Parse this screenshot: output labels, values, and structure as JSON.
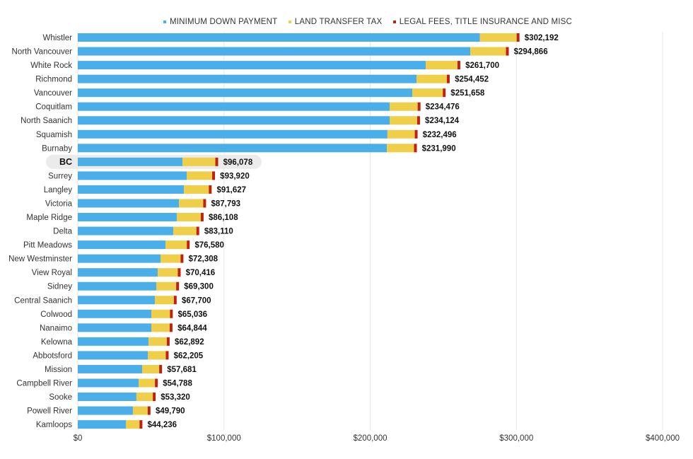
{
  "chart_data": {
    "type": "bar",
    "orientation": "horizontal",
    "stacked": true,
    "xlim": [
      0,
      400000
    ],
    "x_ticks": [
      "$0",
      "$100,000",
      "$200,000",
      "$300,000",
      "$400,000"
    ],
    "x_tick_values": [
      0,
      100000,
      200000,
      300000,
      400000
    ],
    "grid": "vertical",
    "legend_position": "top",
    "highlight_category": "BC",
    "categories": [
      "Whistler",
      "North Vancouver",
      "White Rock",
      "Richmond",
      "Vancouver",
      "Coquitlam",
      "North Saanich",
      "Squamish",
      "Burnaby",
      "BC",
      "Surrey",
      "Langley",
      "Victoria",
      "Maple Ridge",
      "Delta",
      "Pitt Meadows",
      "New Westminster",
      "View Royal",
      "Sidney",
      "Central Saanich",
      "Colwood",
      "Nanaimo",
      "Kelowna",
      "Abbotsford",
      "Mission",
      "Campbell River",
      "Sooke",
      "Powell River",
      "Kamloops"
    ],
    "totals": [
      302192,
      294866,
      261700,
      254452,
      251658,
      234476,
      234124,
      232496,
      231990,
      96078,
      93920,
      91627,
      87793,
      86108,
      83110,
      76580,
      72308,
      70416,
      69300,
      67700,
      65036,
      64844,
      62892,
      62205,
      57681,
      54788,
      53320,
      49790,
      44236
    ],
    "total_labels": [
      "$302,192",
      "$294,866",
      "$261,700",
      "$254,452",
      "$251,658",
      "$234,476",
      "$234,124",
      "$232,496",
      "$231,990",
      "$96,078",
      "$93,920",
      "$91,627",
      "$87,793",
      "$86,108",
      "$83,110",
      "$76,580",
      "$72,308",
      "$70,416",
      "$69,300",
      "$67,700",
      "$65,036",
      "$64,844",
      "$62,892",
      "$62,205",
      "$57,681",
      "$54,788",
      "$53,320",
      "$49,790",
      "$44,236"
    ],
    "series": [
      {
        "name": "MINIMUM DOWN PAYMENT",
        "color": "#4aaee8",
        "values": [
          275000,
          268500,
          238000,
          231700,
          228800,
          213300,
          213300,
          211800,
          211400,
          71600,
          74500,
          72600,
          69200,
          67700,
          65300,
          60000,
          56600,
          54700,
          53700,
          52700,
          50300,
          50300,
          48400,
          47900,
          44000,
          41600,
          40100,
          37700,
          32900
        ]
      },
      {
        "name": "LAND TRANSFER TAX",
        "color": "#efcf4a",
        "values": [
          25192,
          24366,
          21700,
          20752,
          20858,
          19176,
          18824,
          18696,
          18590,
          22478,
          17420,
          17027,
          16593,
          16408,
          15810,
          14580,
          13708,
          13716,
          13600,
          13000,
          12736,
          12544,
          12492,
          12305,
          11681,
          11188,
          11220,
          10090,
          9336
        ]
      },
      {
        "name": "LEGAL FEES, TITLE INSURANCE AND MISC",
        "color": "#c0210f",
        "values": [
          2000,
          2000,
          2000,
          2000,
          2000,
          2000,
          2000,
          2000,
          2000,
          2000,
          2000,
          2000,
          2000,
          2000,
          2000,
          2000,
          2000,
          2000,
          2000,
          2000,
          2000,
          2000,
          2000,
          2000,
          2000,
          2000,
          2000,
          2000,
          2000
        ]
      }
    ]
  }
}
